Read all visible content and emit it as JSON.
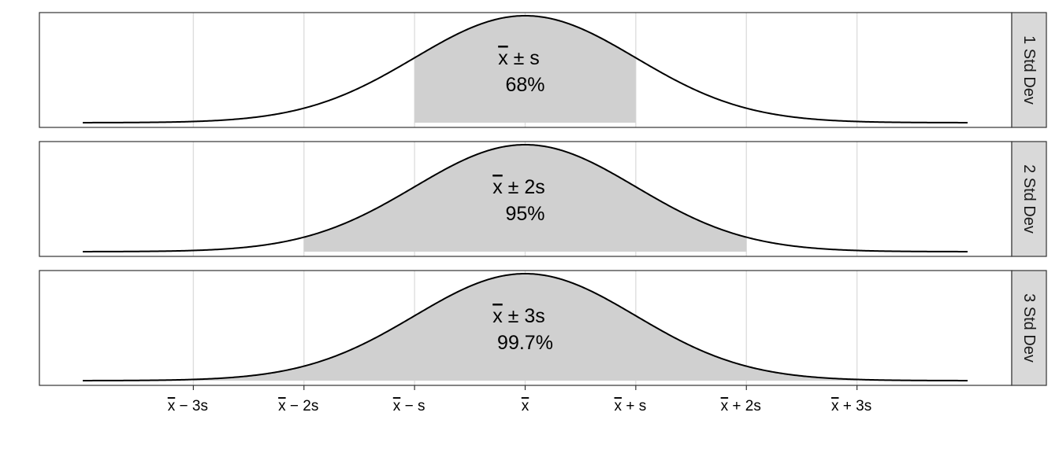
{
  "chart_data": {
    "type": "area",
    "title": "",
    "xlabel": "",
    "ylabel": "",
    "grid": true,
    "x_range_sd": [
      -4,
      4
    ],
    "x_ticks": [
      {
        "value": -3,
        "pre": "x",
        "post": " − 3s"
      },
      {
        "value": -2,
        "pre": "x",
        "post": " − 2s"
      },
      {
        "value": -1,
        "pre": "x",
        "post": " − s"
      },
      {
        "value": 0,
        "pre": "x",
        "post": ""
      },
      {
        "value": 1,
        "pre": "x",
        "post": " + s"
      },
      {
        "value": 2,
        "pre": "x",
        "post": " + 2s"
      },
      {
        "value": 3,
        "pre": "x",
        "post": " + 3s"
      }
    ],
    "panels": [
      {
        "strip": "1 Std Dev",
        "k": 1,
        "label_pre": "x",
        "label_post": " ± s",
        "percent": "68%"
      },
      {
        "strip": "2 Std Dev",
        "k": 2,
        "label_pre": "x",
        "label_post": " ± 2s",
        "percent": "95%"
      },
      {
        "strip": "3 Std Dev",
        "k": 3,
        "label_pre": "x",
        "label_post": " ± 3s",
        "percent": "99.7%"
      }
    ],
    "colors": {
      "fill": "#d0d0d0",
      "curve": "#000000",
      "grid": "#dedede",
      "strip_bg": "#d9d9d9",
      "border": "#333333"
    }
  }
}
